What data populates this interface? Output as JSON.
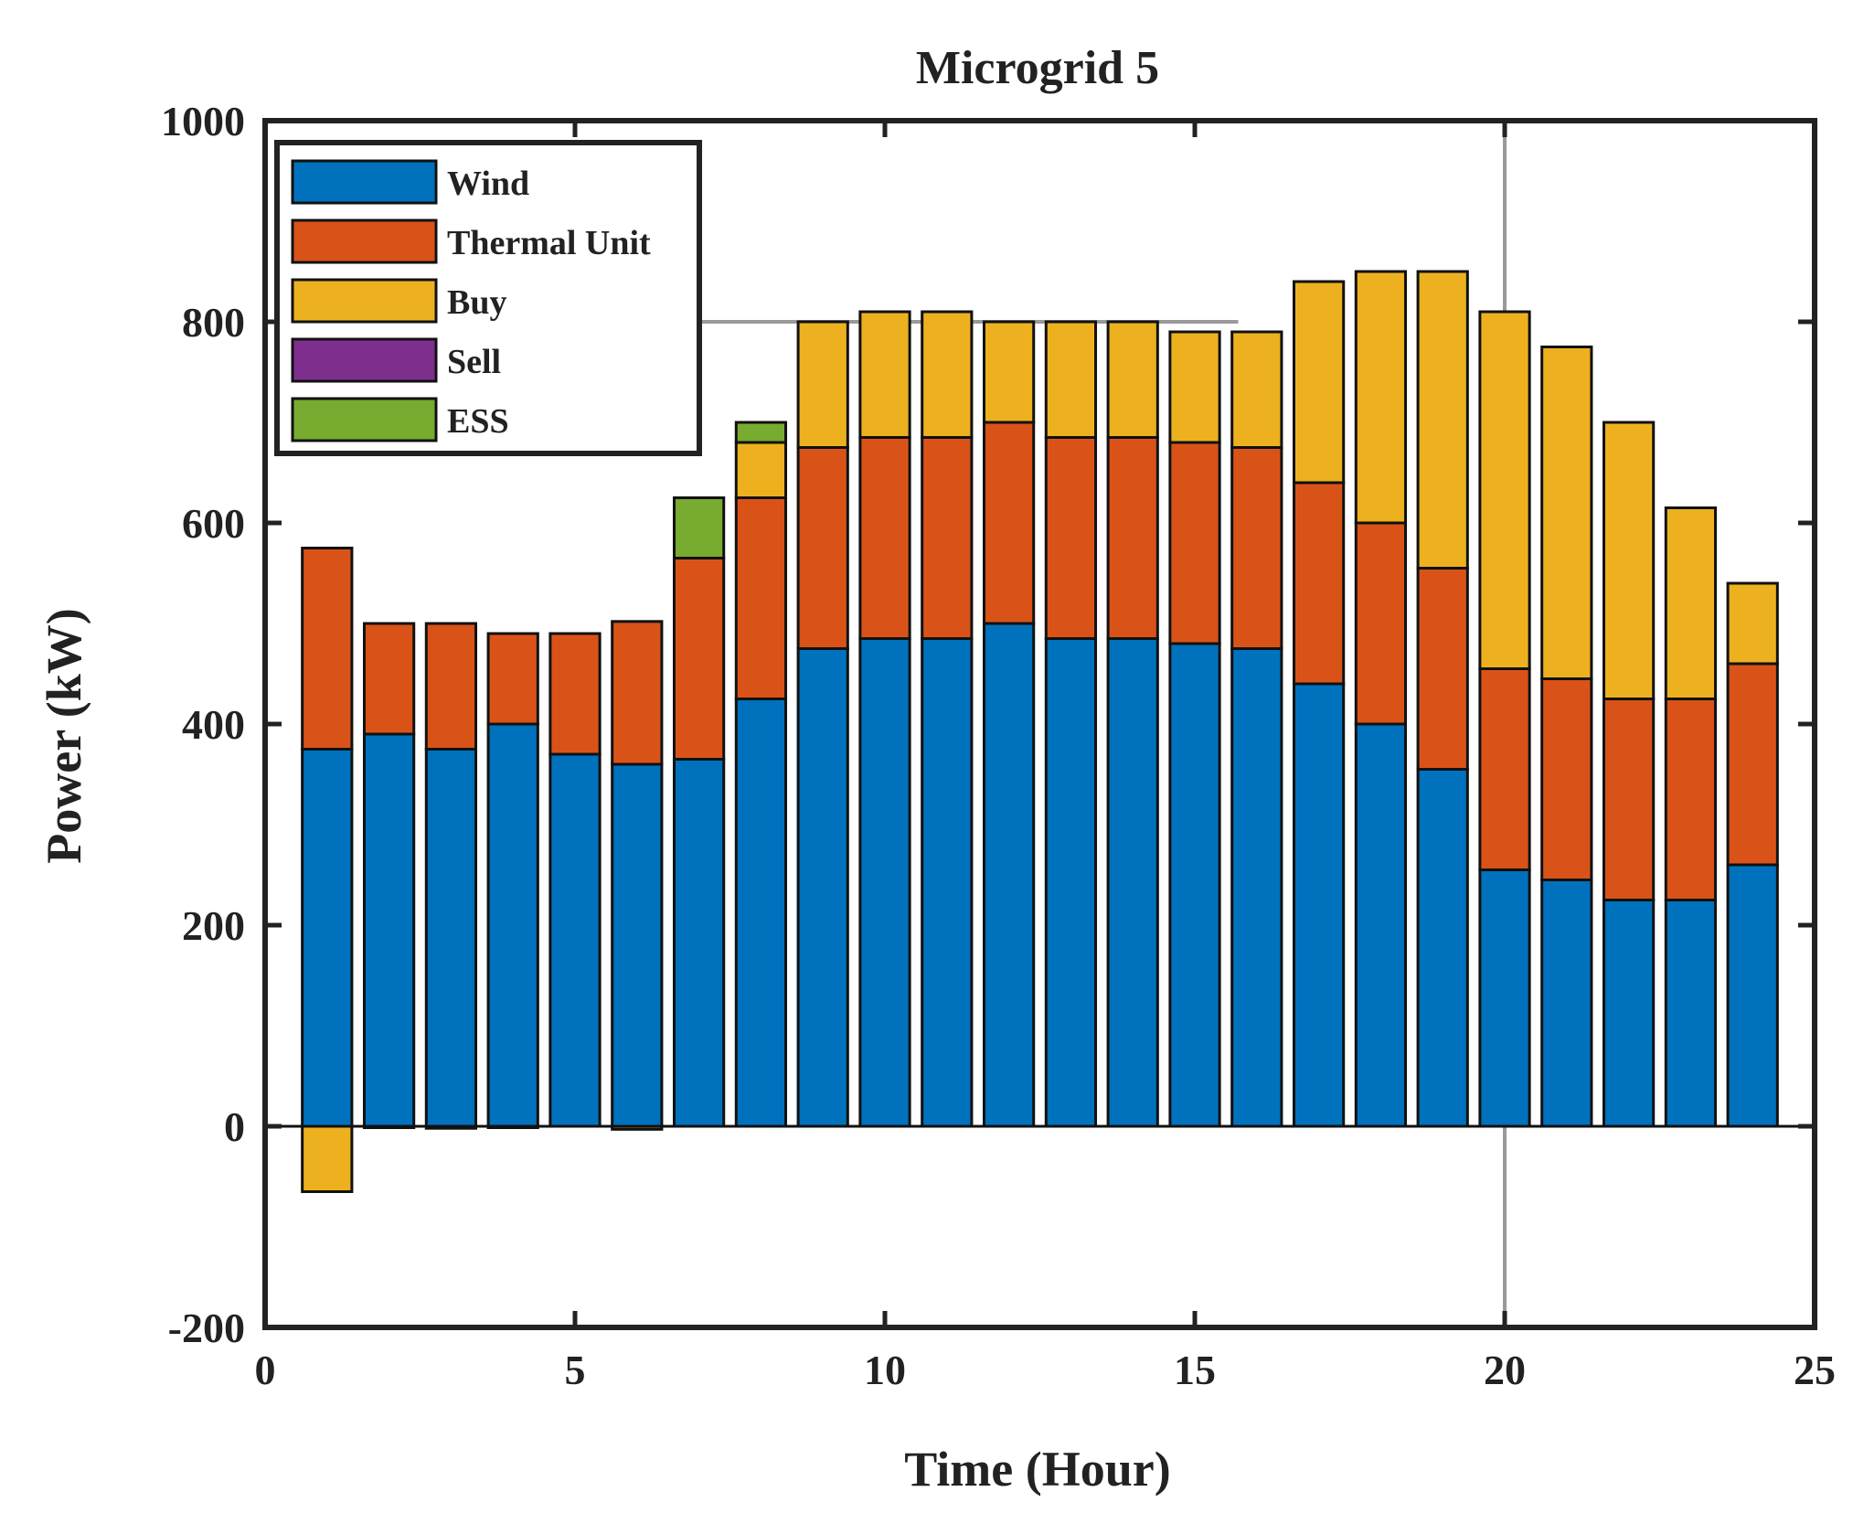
{
  "chart_data": {
    "type": "bar",
    "stacked": true,
    "title": "Microgrid 5",
    "xlabel": "Time (Hour)",
    "ylabel": "Power (kW)",
    "xlim": [
      0,
      25
    ],
    "ylim": [
      -200,
      1000
    ],
    "xticks": [
      0,
      5,
      10,
      15,
      20,
      25
    ],
    "yticks": [
      -200,
      0,
      200,
      400,
      600,
      800,
      1000
    ],
    "grid": false,
    "legend_position": "top-left",
    "x": [
      1,
      2,
      3,
      4,
      5,
      6,
      7,
      8,
      9,
      10,
      11,
      12,
      13,
      14,
      15,
      16,
      17,
      18,
      19,
      20,
      21,
      22,
      23,
      24
    ],
    "series": [
      {
        "name": "Wind",
        "color": "#0072BD",
        "values": [
          375,
          390,
          375,
          400,
          370,
          360,
          365,
          425,
          475,
          485,
          485,
          500,
          485,
          485,
          480,
          475,
          440,
          400,
          355,
          255,
          245,
          225,
          225,
          260
        ]
      },
      {
        "name": "Thermal Unit",
        "color": "#D95319",
        "values": [
          200,
          110,
          125,
          90,
          120,
          142,
          200,
          200,
          200,
          200,
          200,
          200,
          200,
          200,
          200,
          200,
          200,
          200,
          200,
          200,
          200,
          200,
          200,
          200
        ]
      },
      {
        "name": "Buy",
        "color": "#EDB120",
        "values": [
          -65,
          -1,
          -2,
          -1,
          0,
          -3,
          0,
          55,
          125,
          125,
          125,
          100,
          115,
          115,
          110,
          115,
          200,
          250,
          295,
          355,
          330,
          275,
          190,
          80
        ]
      },
      {
        "name": "Sell",
        "color": "#7E2F8E",
        "values": [
          0,
          0,
          0,
          0,
          0,
          0,
          0,
          0,
          0,
          0,
          0,
          0,
          0,
          0,
          0,
          0,
          0,
          0,
          0,
          0,
          0,
          0,
          0,
          0
        ]
      },
      {
        "name": "ESS",
        "color": "#77AC30",
        "values": [
          0,
          0,
          0,
          0,
          0,
          0,
          60,
          20,
          0,
          0,
          0,
          0,
          0,
          0,
          0,
          0,
          0,
          0,
          0,
          0,
          0,
          0,
          0,
          0
        ]
      }
    ],
    "reference_lines": [
      {
        "orientation": "horizontal",
        "value": 800,
        "x_range": [
          7,
          15.7
        ],
        "color": "#999999"
      },
      {
        "orientation": "vertical",
        "value": 20,
        "color": "#999999"
      }
    ]
  }
}
